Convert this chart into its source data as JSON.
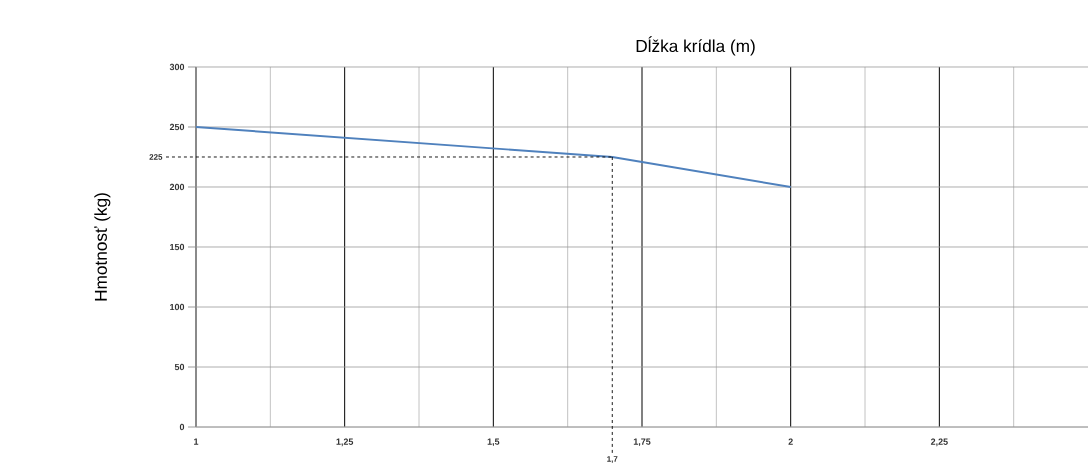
{
  "chart_data": {
    "type": "line",
    "xlabel": "Dĺžka krídla (m)",
    "ylabel": "Hmotnosť (kg)",
    "x": [
      1,
      1.7,
      2
    ],
    "series": [
      {
        "color": "#4f81bd",
        "values": [
          250,
          225,
          200
        ]
      }
    ],
    "xlim": [
      1,
      2.5
    ],
    "xticks": [
      1,
      {
        "value": 1.125,
        "label": null
      },
      {
        "value": 1.25,
        "label": "1,25"
      },
      {
        "value": 1.375,
        "label": null
      },
      {
        "value": 1.5,
        "label": "1,5"
      },
      {
        "value": 1.625,
        "label": null
      },
      {
        "value": 1.75,
        "label": "1,75"
      },
      {
        "value": 1.875,
        "label": null
      },
      2,
      {
        "value": 2.125,
        "label": null
      },
      {
        "value": 2.25,
        "label": "2,25"
      },
      {
        "value": 2.375,
        "label": null
      }
    ],
    "ylim": [
      0,
      300
    ],
    "yticks": [
      0,
      50,
      100,
      150,
      200,
      250,
      300
    ],
    "grid": true,
    "annotations": [
      {
        "text": "225",
        "x": 1.7,
        "y": 225
      },
      {
        "text": "1,7",
        "x": 1.7,
        "y": 225
      }
    ]
  }
}
